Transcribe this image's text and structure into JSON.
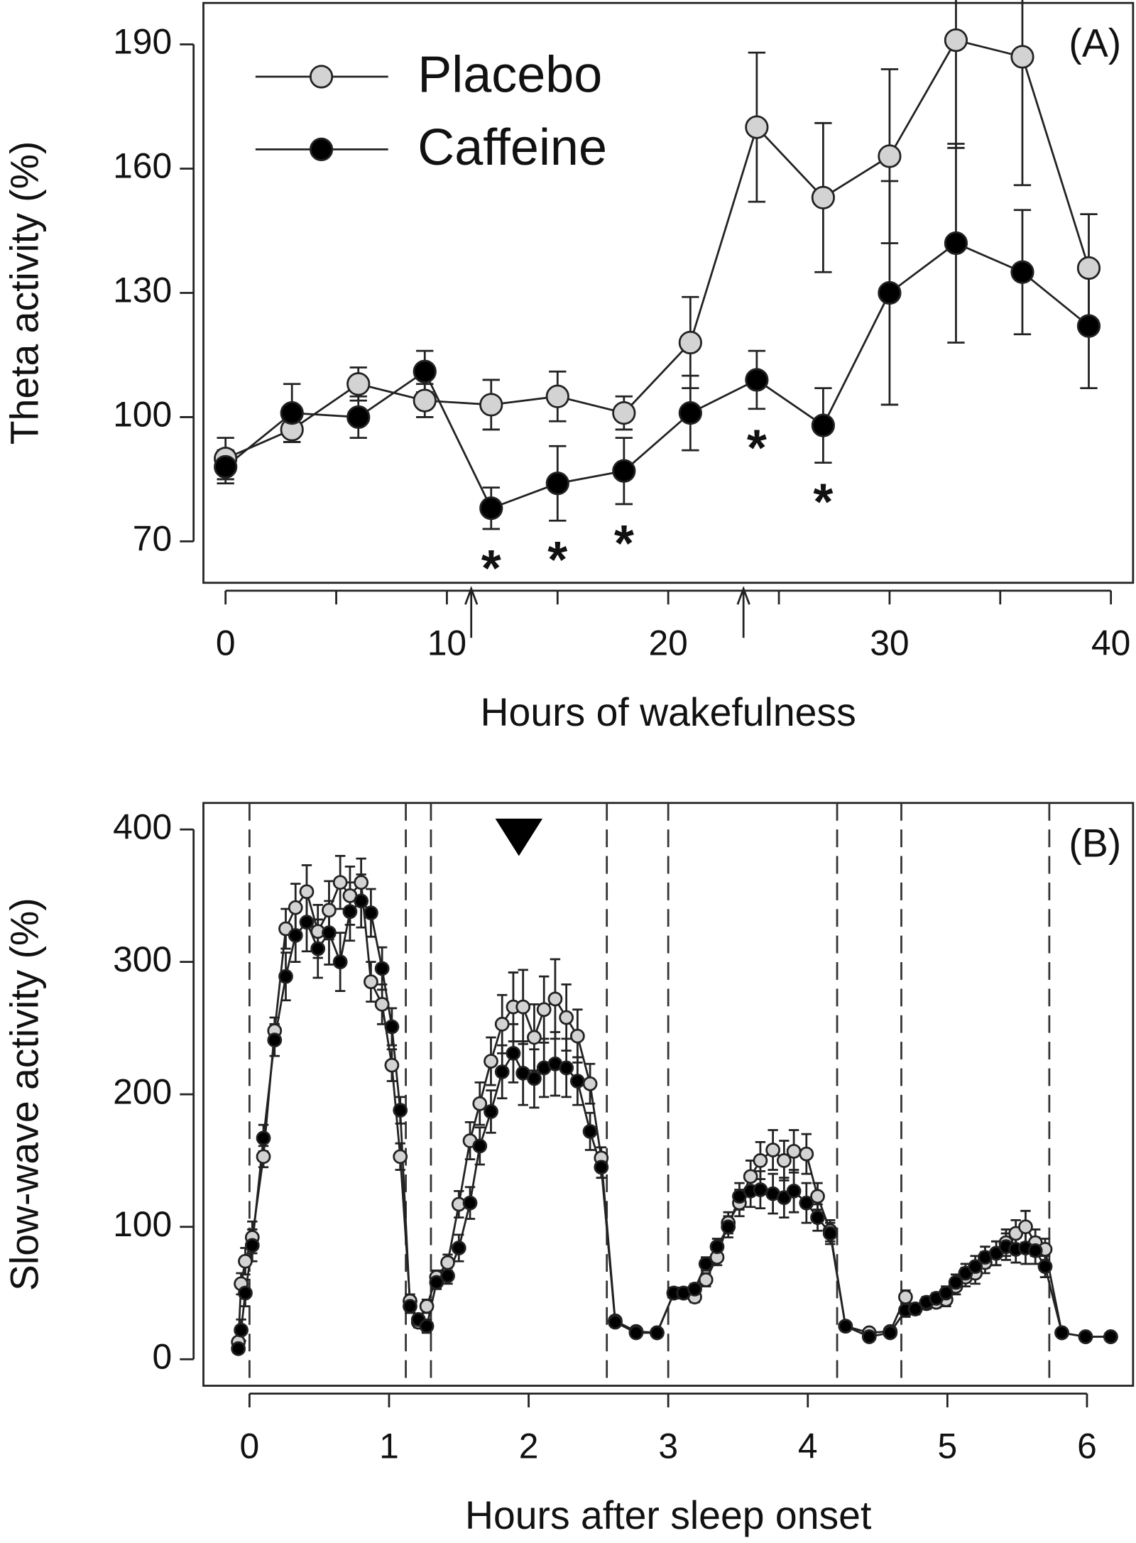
{
  "chart_data": [
    {
      "type": "line",
      "panel_label": "(A)",
      "x_label": "Hours of wakefulness",
      "y_label": "Theta activity (%)",
      "x": [
        0,
        3,
        6,
        9,
        12,
        15,
        18,
        21,
        24,
        27,
        30,
        33,
        36,
        39
      ],
      "series": [
        {
          "name": "Placebo",
          "color": "#d3d3d3",
          "values": [
            90,
            97,
            108,
            104,
            103,
            105,
            101,
            118,
            170,
            153,
            163,
            191,
            187,
            136
          ],
          "errors": [
            5,
            3,
            4,
            4,
            6,
            6,
            4,
            11,
            18,
            18,
            21,
            26,
            31,
            13
          ]
        },
        {
          "name": "Caffeine",
          "color": "#000000",
          "values": [
            88,
            101,
            100,
            111,
            78,
            84,
            87,
            101,
            109,
            98,
            130,
            142,
            135,
            122
          ],
          "errors": [
            4,
            7,
            5,
            5,
            5,
            9,
            8,
            9,
            7,
            9,
            27,
            24,
            15,
            15
          ]
        }
      ],
      "significance_label": "*",
      "significance_x": [
        12,
        15,
        18,
        24,
        27
      ],
      "arrows_x": [
        11.1,
        23.4
      ],
      "xlim": [
        -1,
        41
      ],
      "ylim": [
        60,
        200
      ],
      "xticks": [
        0,
        10,
        20,
        30,
        40
      ],
      "xminor_ticks": [
        5,
        15,
        25,
        35
      ],
      "yticks": [
        70,
        100,
        130,
        160,
        190
      ],
      "legend": "upper left"
    },
    {
      "type": "line",
      "panel_label": "(B)",
      "x_label": "Hours after sleep onset",
      "y_label": "Slow-wave activity (%)",
      "x": [
        -0.08,
        -0.06,
        -0.03,
        0.02,
        0.1,
        0.18,
        0.26,
        0.33,
        0.41,
        0.49,
        0.57,
        0.65,
        0.72,
        0.8,
        0.87,
        0.95,
        1.02,
        1.08,
        1.15,
        1.21,
        1.27,
        1.34,
        1.42,
        1.5,
        1.58,
        1.65,
        1.73,
        1.81,
        1.89,
        1.96,
        2.04,
        2.11,
        2.19,
        2.27,
        2.35,
        2.44,
        2.52,
        2.62,
        2.77,
        2.92,
        3.04,
        3.11,
        3.19,
        3.27,
        3.35,
        3.43,
        3.51,
        3.59,
        3.66,
        3.75,
        3.83,
        3.9,
        3.99,
        4.07,
        4.16,
        4.27,
        4.44,
        4.59,
        4.7,
        4.77,
        4.85,
        4.92,
        4.99,
        5.06,
        5.13,
        5.2,
        5.27,
        5.35,
        5.42,
        5.49,
        5.56,
        5.63,
        5.7,
        5.82,
        5.99,
        6.17
      ],
      "series": [
        {
          "name": "Placebo",
          "color": "#d3d3d3",
          "values": [
            13,
            57,
            74,
            92,
            153,
            248,
            325,
            341,
            353,
            323,
            339,
            360,
            350,
            360,
            285,
            268,
            222,
            153,
            44,
            28,
            40,
            62,
            73,
            117,
            165,
            193,
            225,
            253,
            266,
            266,
            243,
            264,
            272,
            258,
            244,
            208,
            152,
            29,
            21,
            20,
            50,
            50,
            47,
            60,
            77,
            103,
            118,
            138,
            150,
            158,
            150,
            157,
            155,
            123,
            97,
            25,
            20,
            21,
            47,
            38,
            42,
            43,
            45,
            55,
            62,
            65,
            73,
            80,
            88,
            95,
            100,
            88,
            83,
            20,
            17,
            17
          ],
          "errors": [
            3,
            8,
            10,
            12,
            8,
            10,
            15,
            18,
            20,
            20,
            22,
            20,
            22,
            18,
            15,
            15,
            12,
            10,
            5,
            4,
            5,
            5,
            6,
            10,
            14,
            16,
            18,
            22,
            26,
            28,
            25,
            25,
            30,
            25,
            20,
            15,
            8,
            3,
            3,
            3,
            4,
            4,
            4,
            5,
            6,
            8,
            10,
            12,
            14,
            15,
            15,
            16,
            15,
            10,
            8,
            3,
            3,
            3,
            5,
            4,
            4,
            4,
            5,
            6,
            7,
            8,
            8,
            9,
            10,
            10,
            12,
            10,
            8,
            3,
            3,
            3
          ]
        },
        {
          "name": "Caffeine",
          "color": "#000000",
          "values": [
            8,
            22,
            50,
            86,
            167,
            241,
            289,
            320,
            330,
            310,
            322,
            300,
            338,
            346,
            337,
            295,
            251,
            188,
            40,
            30,
            25,
            58,
            63,
            84,
            118,
            161,
            187,
            217,
            231,
            216,
            212,
            220,
            223,
            220,
            210,
            172,
            145,
            28,
            20,
            20,
            50,
            50,
            53,
            72,
            85,
            100,
            123,
            127,
            128,
            125,
            122,
            127,
            118,
            107,
            95,
            25,
            17,
            20,
            37,
            38,
            43,
            46,
            50,
            58,
            65,
            70,
            77,
            80,
            85,
            83,
            84,
            82,
            70,
            20,
            17,
            17
          ],
          "errors": [
            3,
            8,
            10,
            12,
            10,
            12,
            18,
            20,
            22,
            22,
            24,
            22,
            22,
            20,
            18,
            16,
            14,
            10,
            5,
            4,
            5,
            5,
            6,
            10,
            12,
            14,
            16,
            20,
            22,
            24,
            22,
            22,
            24,
            22,
            18,
            14,
            8,
            3,
            3,
            3,
            4,
            4,
            4,
            5,
            6,
            8,
            10,
            12,
            14,
            15,
            15,
            16,
            15,
            10,
            8,
            3,
            3,
            3,
            5,
            4,
            4,
            4,
            5,
            6,
            7,
            8,
            8,
            9,
            10,
            10,
            12,
            10,
            8,
            3,
            3,
            3
          ]
        }
      ],
      "vlines_x": [
        0,
        1.12,
        1.3,
        2.56,
        3.0,
        4.21,
        4.67,
        5.73
      ],
      "triangle_x": 1.93,
      "xlim": [
        -0.33,
        6.33
      ],
      "ylim": [
        -20,
        420
      ],
      "xticks": [
        0,
        1,
        2,
        3,
        4,
        5,
        6
      ],
      "yticks": [
        0,
        100,
        200,
        300,
        400
      ]
    }
  ]
}
